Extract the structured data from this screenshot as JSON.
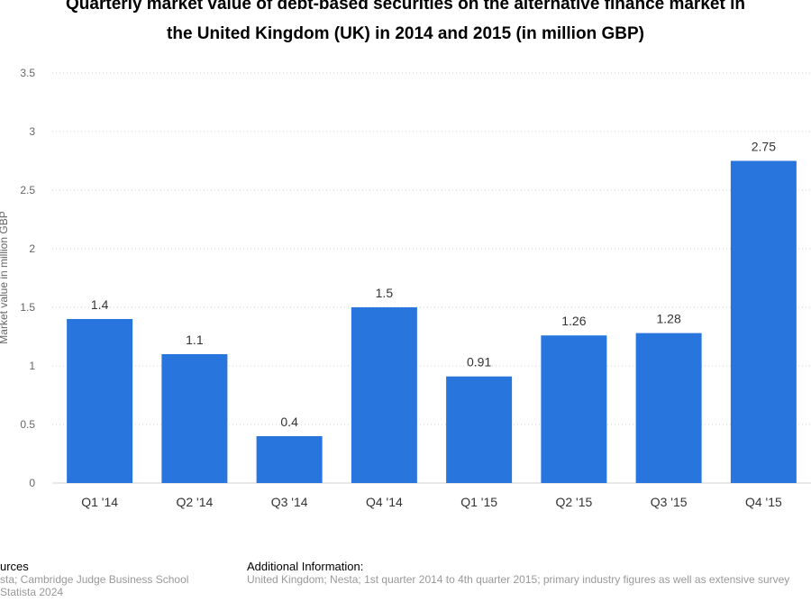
{
  "chart_data": {
    "type": "bar",
    "title_lines": [
      "Quarterly market value of debt-based securities on the alternative finance market in",
      "the United Kingdom (UK) in 2014 and 2015 (in million GBP)"
    ],
    "categories": [
      "Q1 '14",
      "Q2 '14",
      "Q3 '14",
      "Q4 '14",
      "Q1 '15",
      "Q2 '15",
      "Q3 '15",
      "Q4 '15"
    ],
    "values": [
      1.4,
      1.1,
      0.4,
      1.5,
      0.91,
      1.26,
      1.28,
      2.75
    ],
    "value_labels": [
      "1.4",
      "1.1",
      "0.4",
      "1.5",
      "0.91",
      "1.26",
      "1.28",
      "2.75"
    ],
    "ylabel": "Market value in million GBP",
    "xlabel": "",
    "ylim": [
      0,
      3.5
    ],
    "yticks": [
      0,
      0.5,
      1,
      1.5,
      2,
      2.5,
      3,
      3.5
    ],
    "ytick_labels": [
      "0",
      "0.5",
      "1",
      "1.5",
      "2",
      "2.5",
      "3",
      "3.5"
    ],
    "grid": true,
    "bar_color": "#2876dd"
  },
  "footer": {
    "sources_heading": "urces",
    "sources_line1": "sta; Cambridge Judge Business School",
    "sources_line2": "Statista 2024",
    "additional_heading": "Additional Information:",
    "additional_text": "United Kingdom; Nesta; 1st quarter 2014 to 4th quarter 2015; primary industry figures as well as extensive survey"
  }
}
